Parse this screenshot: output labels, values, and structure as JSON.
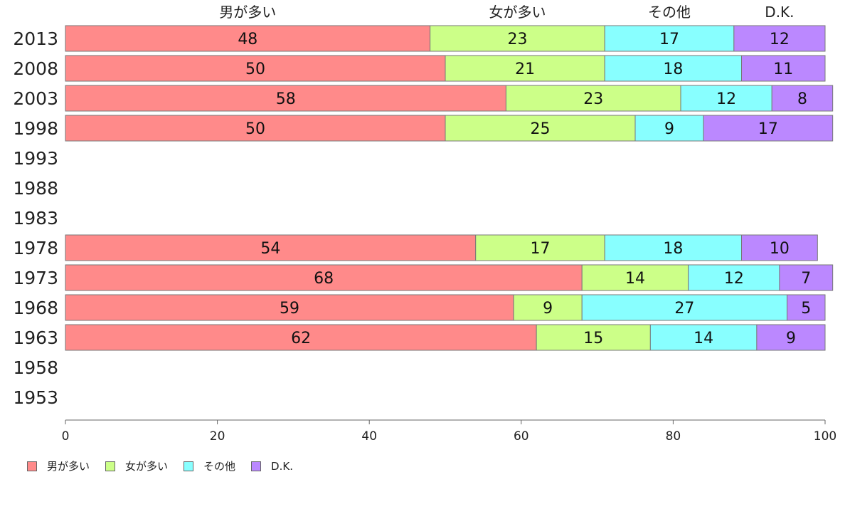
{
  "chart_data": {
    "type": "bar",
    "orientation": "horizontal",
    "stacked": true,
    "categories": [
      "2013",
      "2008",
      "2003",
      "1998",
      "1993",
      "1988",
      "1983",
      "1978",
      "1973",
      "1968",
      "1963",
      "1958",
      "1953"
    ],
    "series": [
      {
        "name": "男が多い",
        "color": "#ff8a8a",
        "values": [
          48,
          50,
          58,
          50,
          null,
          null,
          null,
          54,
          68,
          59,
          62,
          null,
          null
        ]
      },
      {
        "name": "女が多い",
        "color": "#ccff88",
        "values": [
          23,
          21,
          23,
          25,
          null,
          null,
          null,
          17,
          14,
          9,
          15,
          null,
          null
        ]
      },
      {
        "name": "その他",
        "color": "#88ffff",
        "values": [
          17,
          18,
          12,
          9,
          null,
          null,
          null,
          18,
          12,
          27,
          14,
          null,
          null
        ]
      },
      {
        "name": "D.K.",
        "color": "#bb88ff",
        "values": [
          12,
          11,
          8,
          17,
          null,
          null,
          null,
          10,
          7,
          5,
          9,
          null,
          null
        ]
      }
    ],
    "xlim": [
      0,
      100
    ],
    "xticks": [
      0,
      20,
      40,
      60,
      80,
      100
    ],
    "legend_position": "bottom-left",
    "series_labels_position": "top"
  }
}
